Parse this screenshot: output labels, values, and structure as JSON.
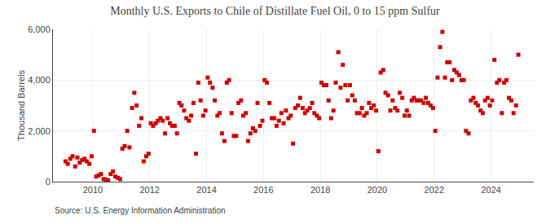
{
  "chart_data": {
    "type": "scatter",
    "title": "Monthly U.S. Exports to Chile of Distillate Fuel Oil, 0 to 15 ppm Sulfur",
    "ylabel": "Thousand Barrels",
    "source": "Source: U.S. Energy Information Administration",
    "color": "#cc0000",
    "marker": "square",
    "grid": true,
    "xlim": [
      2008.6,
      2025.5
    ],
    "xticks": [
      2010,
      2012,
      2014,
      2016,
      2018,
      2020,
      2022,
      2024
    ],
    "ylim": [
      0,
      6000
    ],
    "yticks": [
      0,
      {
        "value": 2000,
        "label": "2,000"
      },
      {
        "value": 4000,
        "label": "4,000"
      },
      {
        "value": 6000,
        "label": "6,000"
      }
    ],
    "x": [
      2009.04,
      2009.12,
      2009.21,
      2009.29,
      2009.38,
      2009.46,
      2009.54,
      2009.63,
      2009.71,
      2009.79,
      2009.88,
      2009.96,
      2010.04,
      2010.12,
      2010.21,
      2010.29,
      2010.38,
      2010.46,
      2010.54,
      2010.63,
      2010.71,
      2010.79,
      2010.88,
      2010.96,
      2011.04,
      2011.12,
      2011.21,
      2011.29,
      2011.38,
      2011.46,
      2011.54,
      2011.63,
      2011.71,
      2011.79,
      2011.88,
      2011.96,
      2012.04,
      2012.12,
      2012.21,
      2012.29,
      2012.38,
      2012.46,
      2012.54,
      2012.63,
      2012.71,
      2012.79,
      2012.88,
      2012.96,
      2013.04,
      2013.12,
      2013.21,
      2013.29,
      2013.38,
      2013.46,
      2013.54,
      2013.63,
      2013.71,
      2013.79,
      2013.88,
      2013.96,
      2014.04,
      2014.12,
      2014.21,
      2014.29,
      2014.38,
      2014.46,
      2014.54,
      2014.63,
      2014.71,
      2014.79,
      2014.88,
      2014.96,
      2015.04,
      2015.12,
      2015.21,
      2015.29,
      2015.38,
      2015.46,
      2015.54,
      2015.63,
      2015.71,
      2015.79,
      2015.88,
      2015.96,
      2016.04,
      2016.12,
      2016.21,
      2016.29,
      2016.38,
      2016.46,
      2016.54,
      2016.63,
      2016.71,
      2016.79,
      2016.88,
      2016.96,
      2017.04,
      2017.12,
      2017.21,
      2017.29,
      2017.38,
      2017.46,
      2017.54,
      2017.63,
      2017.71,
      2017.79,
      2017.88,
      2017.96,
      2018.04,
      2018.12,
      2018.21,
      2018.29,
      2018.38,
      2018.46,
      2018.54,
      2018.63,
      2018.71,
      2018.79,
      2018.88,
      2018.96,
      2019.04,
      2019.12,
      2019.21,
      2019.29,
      2019.38,
      2019.46,
      2019.54,
      2019.63,
      2019.71,
      2019.79,
      2019.88,
      2019.96,
      2020.04,
      2020.12,
      2020.21,
      2020.29,
      2020.38,
      2020.46,
      2020.54,
      2020.63,
      2020.71,
      2020.79,
      2020.88,
      2020.96,
      2021.04,
      2021.12,
      2021.21,
      2021.29,
      2021.38,
      2021.46,
      2021.54,
      2021.63,
      2021.71,
      2021.79,
      2021.88,
      2021.96,
      2022.04,
      2022.12,
      2022.21,
      2022.29,
      2022.38,
      2022.46,
      2022.54,
      2022.63,
      2022.71,
      2022.79,
      2022.88,
      2022.96,
      2023.04,
      2023.12,
      2023.21,
      2023.29,
      2023.38,
      2023.46,
      2023.54,
      2023.63,
      2023.71,
      2023.79,
      2023.88,
      2023.96,
      2024.04,
      2024.12,
      2024.21,
      2024.29,
      2024.38,
      2024.46,
      2024.54,
      2024.63,
      2024.71,
      2024.79,
      2024.88,
      2024.96
    ],
    "values": [
      800,
      700,
      900,
      1000,
      600,
      950,
      750,
      850,
      900,
      800,
      700,
      1000,
      2000,
      200,
      250,
      300,
      100,
      80,
      50,
      300,
      400,
      200,
      150,
      100,
      1300,
      1400,
      2000,
      1350,
      2900,
      3500,
      3000,
      2200,
      2500,
      800,
      1000,
      1100,
      2300,
      2200,
      2300,
      2400,
      2500,
      2400,
      1900,
      2500,
      2300,
      2200,
      2200,
      1900,
      3100,
      3000,
      2800,
      2500,
      2400,
      2600,
      3100,
      1100,
      3900,
      3200,
      2600,
      2800,
      4100,
      3900,
      3700,
      3200,
      2600,
      2700,
      1900,
      1600,
      3900,
      4000,
      2700,
      1800,
      1800,
      3100,
      3200,
      2600,
      2700,
      1600,
      1900,
      2100,
      2000,
      3100,
      2200,
      2400,
      4000,
      3900,
      3100,
      2500,
      2500,
      2200,
      2400,
      2700,
      2300,
      2800,
      2500,
      2600,
      1500,
      2900,
      3000,
      3300,
      2900,
      2700,
      2800,
      2900,
      3100,
      2700,
      2600,
      2500,
      3900,
      3800,
      3800,
      3200,
      2500,
      2800,
      3900,
      5100,
      3700,
      4600,
      3800,
      3200,
      3800,
      3400,
      3200,
      2700,
      2700,
      2900,
      2600,
      2700,
      3100,
      2900,
      3000,
      2800,
      1200,
      4300,
      4400,
      3500,
      3400,
      2800,
      3200,
      2900,
      2800,
      3500,
      3300,
      2600,
      2800,
      2600,
      3200,
      3300,
      3200,
      3200,
      3200,
      3100,
      3300,
      3100,
      3000,
      2900,
      2000,
      4100,
      5300,
      5900,
      4100,
      4700,
      4700,
      4000,
      4400,
      4300,
      4200,
      4000,
      4000,
      2000,
      1900,
      3200,
      3300,
      3100,
      3000,
      2800,
      2700,
      3200,
      3300,
      3000,
      3200,
      4800,
      3900,
      4000,
      2700,
      3900,
      4000,
      3300,
      3200,
      2700,
      3000,
      5000
    ]
  }
}
